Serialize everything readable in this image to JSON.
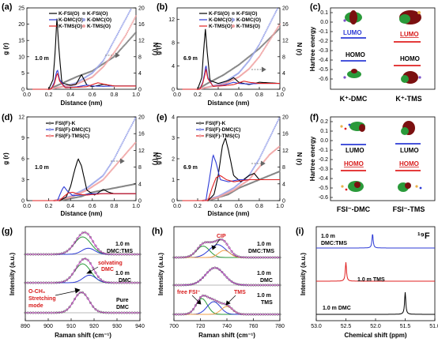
{
  "colors": {
    "black": "#000000",
    "blue": "#2d3bd6",
    "red": "#e02020",
    "gray": "#7f7f7f",
    "lblue": "#9aa4ea",
    "lred": "#f0a2a2",
    "green": "#2a9a3a",
    "darkred": "#7b1010",
    "orange": "#f2a24a"
  },
  "panel_a": {
    "label": "(a)",
    "note": "1.0 m",
    "legend": {
      "lines": [
        "K-FSI(O)",
        "K-DMC(O)",
        "K-TMS(O)"
      ],
      "markers": [
        "K-FSI(O)",
        "K-DMC(O)",
        "K-TMS(O)"
      ]
    }
  },
  "panel_b": {
    "label": "(b)",
    "note": "6.9 m",
    "legend": {
      "lines": [
        "K-FSI(O)",
        "K-DMC(O)",
        "K-TMS(O)"
      ],
      "markers": [
        "K-FSI(O)",
        "K-DMC(O)",
        "K-TMS(O)"
      ]
    }
  },
  "panel_c": {
    "label": "(c)",
    "ylabel": "Hartree energy",
    "lumo": "LUMO",
    "homo": "HOMO",
    "species": [
      "K⁺-DMC",
      "K⁺-TMS"
    ]
  },
  "panel_d": {
    "label": "(d)",
    "note": "1.0 m",
    "legend": {
      "lines": [
        "FSI(F)-K",
        "FSI(F)-DMC(C)",
        "FSI(F)-TMS(C)"
      ],
      "markers": [
        "FSI(F)-K",
        "FSI(F)-DMC(C)",
        "FSI(F)-TMS(C)"
      ]
    }
  },
  "panel_e": {
    "label": "(e)",
    "note": "6.9 m",
    "legend": {
      "lines": [
        "FSI(F)-K",
        "FSI(F)-DMC(C)",
        "FSI(F)-TMS(C)"
      ],
      "markers": [
        "FSI(F)-K",
        "FSI(F)-DMC(C)",
        "FSI(F)-TMS(C)"
      ]
    }
  },
  "panel_f": {
    "label": "(f)",
    "ylabel": "Hartree energy",
    "lumo": "LUMO",
    "homo": "HOMO",
    "species": [
      "FSI⁻-DMC",
      "FSI⁻-TMS"
    ]
  },
  "panel_g": {
    "label": "(g)",
    "ylabel": "Intensity (a.u.)",
    "curve_labels": [
      "1.0 m DMC:TMS",
      "1.0 m DMC",
      "Pure DMC"
    ],
    "annotations": [
      "solvating DMC",
      "O-CH₃ Stretching mode"
    ]
  },
  "panel_h": {
    "label": "(h)",
    "ylabel": "Intensity (a.u.)",
    "curve_labels": [
      "1.0 m DMC:TMS",
      "1.0 m DMC",
      "1.0 m TMS"
    ],
    "annotations": [
      "CIP",
      "free FSI⁻",
      "TMS"
    ]
  },
  "panel_i": {
    "label": "(i)",
    "ylabel": "Intensity (a.u.)",
    "nucleus": "¹⁹F",
    "curve_labels": [
      "1.0 m DMC:TMS",
      "1.0 m TMS",
      "1.0 m DMC"
    ]
  },
  "chart_data": [
    {
      "id": "a",
      "type": "line",
      "xlabel": "Distance (nm)",
      "ylabel": "g (r)",
      "ylabel_right": "N (r)",
      "xlim": [
        0,
        1.0
      ],
      "ylim": [
        0,
        25
      ],
      "ylim_right": [
        0,
        20
      ],
      "xticks": [
        "0.0",
        "0.2",
        "0.4",
        "0.6",
        "0.8",
        "1.0"
      ],
      "yticks": [
        "0",
        "5",
        "10",
        "15",
        "20",
        "25"
      ],
      "yticks_right": [
        "0",
        "4",
        "8",
        "12",
        "16",
        "20"
      ],
      "series": [
        {
          "name": "K-FSI(O)",
          "color": "black",
          "x": [
            0.05,
            0.2,
            0.24,
            0.26,
            0.275,
            0.29,
            0.32,
            0.4,
            0.45,
            0.5,
            0.55,
            0.6,
            0.7,
            0.8,
            1.0
          ],
          "y": [
            0,
            0,
            3,
            12,
            22,
            14,
            2,
            1.2,
            1.5,
            4.5,
            1.3,
            0.8,
            1.5,
            1.0,
            1.0
          ]
        },
        {
          "name": "K-DMC(O)",
          "color": "blue",
          "x": [
            0.05,
            0.22,
            0.25,
            0.27,
            0.28,
            0.3,
            0.35,
            0.45,
            0.55,
            0.6,
            0.7,
            0.8,
            1.0
          ],
          "y": [
            0,
            0,
            2,
            5,
            6,
            3,
            0.6,
            0.7,
            1.3,
            1.0,
            0.9,
            1.0,
            1.0
          ]
        },
        {
          "name": "K-TMS(O)",
          "color": "red",
          "x": [
            0.05,
            0.22,
            0.25,
            0.27,
            0.28,
            0.3,
            0.35,
            0.45,
            0.55,
            0.65,
            0.7,
            0.8,
            1.0
          ],
          "y": [
            0,
            0,
            1.5,
            4,
            5,
            2.5,
            0.5,
            0.6,
            0.8,
            2,
            1.6,
            1.0,
            1.0
          ]
        }
      ],
      "cumulative": [
        {
          "name": "K-FSI(O)",
          "color": "gray",
          "x": [
            0.2,
            0.3,
            0.45,
            0.6,
            0.8,
            1.0
          ],
          "y": [
            0,
            1.2,
            3,
            4.5,
            8,
            14
          ]
        },
        {
          "name": "K-DMC(O)",
          "color": "lblue",
          "x": [
            0.2,
            0.3,
            0.45,
            0.6,
            0.7,
            0.8,
            0.9,
            1.0
          ],
          "y": [
            0,
            0.5,
            1.5,
            4,
            7,
            12,
            17,
            22
          ]
        },
        {
          "name": "K-TMS(O)",
          "color": "lred",
          "x": [
            0.2,
            0.3,
            0.45,
            0.6,
            0.7,
            0.8,
            0.9,
            1.0
          ],
          "y": [
            0,
            0.5,
            1.2,
            3,
            5.5,
            9,
            13,
            18
          ]
        }
      ]
    },
    {
      "id": "b",
      "type": "line",
      "xlabel": "Distance (nm)",
      "ylabel": "g (r)",
      "ylabel_right": "N (r)",
      "xlim": [
        0,
        1.0
      ],
      "ylim": [
        0,
        14
      ],
      "ylim_right": [
        0,
        20
      ],
      "xticks": [
        "0.0",
        "0.2",
        "0.4",
        "0.6",
        "0.8",
        "1.0"
      ],
      "yticks": [
        "0",
        "4",
        "8",
        "12"
      ],
      "yticks_right": [
        "0",
        "4",
        "8",
        "12",
        "16",
        "20"
      ],
      "series": [
        {
          "name": "K-FSI(O)",
          "color": "black",
          "x": [
            0.05,
            0.2,
            0.24,
            0.26,
            0.275,
            0.29,
            0.32,
            0.4,
            0.5,
            0.55,
            0.6,
            0.7,
            0.8,
            1.0
          ],
          "y": [
            0,
            0,
            2,
            7,
            10.5,
            7,
            1.5,
            1.0,
            1.5,
            2.0,
            1.2,
            0.8,
            1.2,
            1.0
          ]
        },
        {
          "name": "K-DMC(O)",
          "color": "blue",
          "x": [
            0.05,
            0.22,
            0.25,
            0.27,
            0.28,
            0.3,
            0.35,
            0.45,
            0.55,
            0.6,
            0.7,
            0.8,
            1.0
          ],
          "y": [
            0,
            0,
            1.2,
            3,
            4.2,
            2,
            0.5,
            0.7,
            1.2,
            1.0,
            0.9,
            1.0,
            1.0
          ]
        },
        {
          "name": "K-TMS(O)",
          "color": "red",
          "x": [
            0.05,
            0.22,
            0.25,
            0.27,
            0.28,
            0.3,
            0.35,
            0.45,
            0.55,
            0.65,
            0.7,
            0.8,
            1.0
          ],
          "y": [
            0,
            0,
            1,
            2.5,
            3.5,
            1.8,
            0.5,
            0.6,
            0.8,
            1.4,
            1.2,
            1.0,
            1.0
          ]
        }
      ],
      "cumulative": [
        {
          "name": "K-FSI(O)",
          "color": "gray",
          "x": [
            0.2,
            0.3,
            0.45,
            0.6,
            0.8,
            1.0
          ],
          "y": [
            0,
            1.5,
            3.5,
            6,
            10,
            15
          ]
        },
        {
          "name": "K-DMC(O)",
          "color": "lblue",
          "x": [
            0.2,
            0.3,
            0.45,
            0.6,
            0.7,
            0.8,
            0.9,
            1.0
          ],
          "y": [
            0,
            0.5,
            1.5,
            4,
            7,
            11,
            16,
            21
          ]
        },
        {
          "name": "K-TMS(O)",
          "color": "lred",
          "x": [
            0.2,
            0.3,
            0.45,
            0.6,
            0.7,
            0.8,
            0.9,
            1.0
          ],
          "y": [
            0,
            0.5,
            1.2,
            3,
            5,
            8,
            12,
            16
          ]
        }
      ]
    },
    {
      "id": "d",
      "type": "line",
      "xlabel": "Distance (nm)",
      "ylabel": "g (r)",
      "ylabel_right": "N (r)",
      "xlim": [
        0,
        1.0
      ],
      "ylim": [
        0,
        12
      ],
      "ylim_right": [
        0,
        20
      ],
      "xticks": [
        "0.0",
        "0.2",
        "0.4",
        "0.6",
        "0.8",
        "1.0"
      ],
      "yticks": [
        "0",
        "3",
        "6",
        "9",
        "12"
      ],
      "yticks_right": [
        "0",
        "4",
        "8",
        "12",
        "16",
        "20"
      ],
      "series": [
        {
          "name": "FSI(F)-K",
          "color": "black",
          "x": [
            0.05,
            0.3,
            0.36,
            0.4,
            0.44,
            0.47,
            0.5,
            0.55,
            0.62,
            0.7,
            0.75,
            0.8,
            1.0
          ],
          "y": [
            0,
            0,
            0.5,
            2,
            4.5,
            6,
            5,
            1.5,
            0.8,
            1.6,
            1.2,
            1.0,
            1.0
          ]
        },
        {
          "name": "FSI(F)-DMC(C)",
          "color": "blue",
          "x": [
            0.05,
            0.28,
            0.32,
            0.34,
            0.37,
            0.42,
            0.5,
            0.6,
            0.8,
            1.0
          ],
          "y": [
            0,
            0,
            1.5,
            2.0,
            1.4,
            0.7,
            0.8,
            1.0,
            1.0,
            1.0
          ]
        },
        {
          "name": "FSI(F)-TMS(C)",
          "color": "red",
          "x": [
            0.05,
            0.3,
            0.34,
            0.38,
            0.42,
            0.48,
            0.55,
            0.7,
            1.0
          ],
          "y": [
            0,
            0,
            0.6,
            1.1,
            1.2,
            0.9,
            0.8,
            1.0,
            1.0
          ]
        }
      ],
      "cumulative": [
        {
          "name": "FSI(F)-K",
          "color": "gray",
          "x": [
            0.3,
            0.5,
            0.6,
            0.8,
            1.0
          ],
          "y": [
            0,
            1,
            2,
            3,
            4
          ]
        },
        {
          "name": "FSI(F)-DMC(C)",
          "color": "lblue",
          "x": [
            0.25,
            0.4,
            0.55,
            0.7,
            0.8,
            0.9,
            1.0
          ],
          "y": [
            0,
            1,
            3,
            6,
            10,
            15,
            20
          ]
        },
        {
          "name": "FSI(F)-TMS(C)",
          "color": "lred",
          "x": [
            0.25,
            0.4,
            0.55,
            0.7,
            0.8,
            0.9,
            1.0
          ],
          "y": [
            0,
            0.8,
            2.5,
            5,
            8,
            11,
            14
          ]
        }
      ]
    },
    {
      "id": "e",
      "type": "line",
      "xlabel": "Distance (nm)",
      "ylabel": "g (r)",
      "ylabel_right": "N (r)",
      "xlim": [
        0,
        1.0
      ],
      "ylim": [
        0,
        4
      ],
      "ylim_right": [
        0,
        20
      ],
      "xticks": [
        "0.0",
        "0.2",
        "0.4",
        "0.6",
        "0.8",
        "1.0"
      ],
      "yticks": [
        "0",
        "1",
        "2",
        "3",
        "4"
      ],
      "yticks_right": [
        "0",
        "4",
        "8",
        "12",
        "16",
        "20"
      ],
      "series": [
        {
          "name": "FSI(F)-K",
          "color": "black",
          "x": [
            0.05,
            0.3,
            0.36,
            0.4,
            0.44,
            0.47,
            0.5,
            0.55,
            0.62,
            0.7,
            0.75,
            0.8,
            1.0
          ],
          "y": [
            0,
            0,
            0.3,
            1.2,
            2.6,
            3.0,
            2.4,
            1.2,
            0.9,
            1.2,
            1.3,
            1.0,
            1.0
          ]
        },
        {
          "name": "FSI(F)-DMC(C)",
          "color": "blue",
          "x": [
            0.05,
            0.28,
            0.32,
            0.35,
            0.38,
            0.42,
            0.5,
            0.6,
            0.8,
            1.0
          ],
          "y": [
            0,
            0,
            1.2,
            2.2,
            1.8,
            1.0,
            0.9,
            1.0,
            1.0,
            1.0
          ]
        },
        {
          "name": "FSI(F)-TMS(C)",
          "color": "red",
          "x": [
            0.05,
            0.3,
            0.34,
            0.38,
            0.42,
            0.48,
            0.55,
            0.7,
            1.0
          ],
          "y": [
            0,
            0,
            0.6,
            1.1,
            1.2,
            1.0,
            0.9,
            1.0,
            1.0
          ]
        }
      ],
      "cumulative": [
        {
          "name": "FSI(F)-K",
          "color": "gray",
          "x": [
            0.3,
            0.5,
            0.6,
            0.8,
            1.0
          ],
          "y": [
            0,
            1.5,
            3,
            5,
            7
          ]
        },
        {
          "name": "FSI(F)-DMC(C)",
          "color": "lblue",
          "x": [
            0.25,
            0.4,
            0.55,
            0.7,
            0.8,
            0.9,
            1.0
          ],
          "y": [
            0,
            1,
            3,
            6,
            10,
            15,
            20
          ]
        },
        {
          "name": "FSI(F)-TMS(C)",
          "color": "lred",
          "x": [
            0.25,
            0.4,
            0.55,
            0.7,
            0.8,
            0.9,
            1.0
          ],
          "y": [
            0,
            0.8,
            2.5,
            5,
            8,
            11,
            13
          ]
        }
      ]
    },
    {
      "id": "g",
      "type": "line",
      "xlabel": "Raman shift (cm⁻¹)",
      "ylabel": "Intensity (a.u.)",
      "xlim": [
        890,
        940
      ],
      "xticks": [
        "890",
        "900",
        "910",
        "920",
        "930",
        "940"
      ],
      "series": [
        {
          "name": "1.0 m DMC:TMS",
          "peaks": [
            {
              "center": 915,
              "width": 5.2,
              "height": 1.0,
              "color": "green"
            },
            {
              "center": 917.5,
              "width": 4.0,
              "height": 0.35,
              "color": "blue"
            }
          ]
        },
        {
          "name": "1.0 m DMC",
          "peaks": [
            {
              "center": 915,
              "width": 5.0,
              "height": 1.0,
              "color": "green"
            },
            {
              "center": 918,
              "width": 4.0,
              "height": 0.4,
              "color": "blue"
            }
          ]
        },
        {
          "name": "Pure DMC",
          "peaks": [
            {
              "center": 914.5,
              "width": 4.6,
              "height": 1.0,
              "color": "green"
            }
          ]
        }
      ]
    },
    {
      "id": "h",
      "type": "line",
      "xlabel": "Raman shift (cm⁻¹)",
      "ylabel": "Intensity (a.u.)",
      "xlim": [
        700,
        780
      ],
      "xticks": [
        "700",
        "720",
        "740",
        "760",
        "780"
      ],
      "series": [
        {
          "name": "1.0 m DMC:TMS",
          "peaks": [
            {
              "center": 722,
              "width": 7,
              "height": 0.8,
              "color": "green"
            },
            {
              "center": 733,
              "width": 9,
              "height": 0.9,
              "color": "blue"
            },
            {
              "center": 738,
              "width": 6,
              "height": 0.5,
              "color": "orange"
            }
          ]
        },
        {
          "name": "1.0 m DMC",
          "peaks": [
            {
              "center": 731,
              "width": 10,
              "height": 1.0,
              "color": "blue"
            }
          ]
        },
        {
          "name": "1.0 m TMS",
          "peaks": [
            {
              "center": 721,
              "width": 6,
              "height": 1.0,
              "color": "green"
            },
            {
              "center": 730,
              "width": 7,
              "height": 0.8,
              "color": "blue"
            },
            {
              "center": 740,
              "width": 6,
              "height": 0.5,
              "color": "orange"
            }
          ]
        }
      ]
    },
    {
      "id": "i",
      "type": "line",
      "xlabel": "Chemical shift (ppm)",
      "ylabel": "Intensity (a.u.)",
      "xlim": [
        53.0,
        51.0
      ],
      "xticks": [
        "53.0",
        "52.5",
        "52.0",
        "51.5",
        "51.0"
      ],
      "series": [
        {
          "name": "1.0 m DMC:TMS",
          "color": "blue",
          "peak": 52.05
        },
        {
          "name": "1.0 m TMS",
          "color": "red",
          "peak": 52.5
        },
        {
          "name": "1.0 m DMC",
          "color": "black",
          "peak": 51.5
        }
      ]
    }
  ]
}
